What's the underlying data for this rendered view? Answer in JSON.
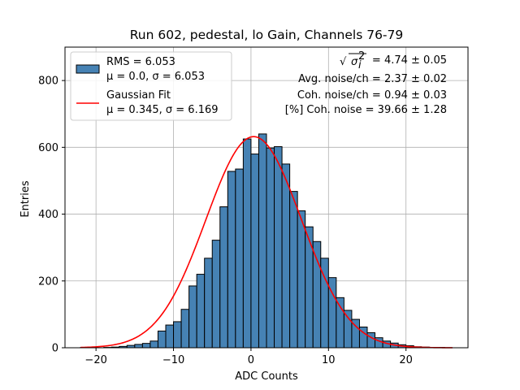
{
  "chart_data": {
    "type": "bar",
    "title": "Run 602, pedestal, lo Gain, Channels 76-79",
    "xlabel": "ADC Counts",
    "ylabel": "Entries",
    "xlim": [
      -24,
      28
    ],
    "ylim": [
      0,
      900
    ],
    "xticks": [
      -20,
      -10,
      0,
      10,
      20
    ],
    "xtick_labels": [
      "−20",
      "−10",
      "0",
      "10",
      "20"
    ],
    "yticks": [
      0,
      200,
      400,
      600,
      800
    ],
    "ytick_labels": [
      "0",
      "200",
      "400",
      "600",
      "800"
    ],
    "grid": true,
    "legend_placement": "upper-left",
    "colors": {
      "histogram_fill": "#4682b4",
      "histogram_edge": "#000000",
      "fit_line": "#ff0000",
      "grid": "#b0b0b0"
    },
    "histogram": {
      "name_line1": "RMS = 6.053",
      "name_line2": "μ = 0.0, σ = 6.053",
      "bin_edges": [
        -22,
        -21,
        -20,
        -19,
        -18,
        -17,
        -16,
        -15,
        -14,
        -13,
        -12,
        -11,
        -10,
        -9,
        -8,
        -7,
        -6,
        -5,
        -4,
        -3,
        -2,
        -1,
        0,
        1,
        2,
        3,
        4,
        5,
        6,
        7,
        8,
        9,
        10,
        11,
        12,
        13,
        14,
        15,
        16,
        17,
        18,
        19,
        20,
        21,
        22,
        23,
        24,
        25,
        26
      ],
      "counts": [
        1,
        0,
        0,
        1,
        2,
        4,
        7,
        10,
        13,
        20,
        50,
        68,
        78,
        115,
        185,
        220,
        268,
        322,
        422,
        528,
        535,
        625,
        580,
        640,
        598,
        602,
        550,
        468,
        410,
        362,
        318,
        268,
        210,
        150,
        112,
        85,
        62,
        45,
        30,
        20,
        14,
        9,
        6,
        3,
        2,
        1,
        1,
        0
      ]
    },
    "fit": {
      "name_line1": "Gaussian Fit",
      "name_line2": "μ = 0.345, σ = 6.169",
      "mu": 0.345,
      "sigma": 6.169,
      "amplitude": 632,
      "x_range": [
        -22,
        26
      ]
    },
    "annotations": {
      "line1_prefix": "√",
      "line1_symbol": "σ",
      "line1_sup": "2",
      "line1_sub": "i",
      "line1_value": " = 4.74 ± 0.05",
      "line2": "Avg. noise/ch = 2.37 ± 0.02",
      "line3": "Coh. noise/ch = 0.94 ± 0.03",
      "line4": "[%] Coh. noise = 39.66 ± 1.28"
    }
  }
}
